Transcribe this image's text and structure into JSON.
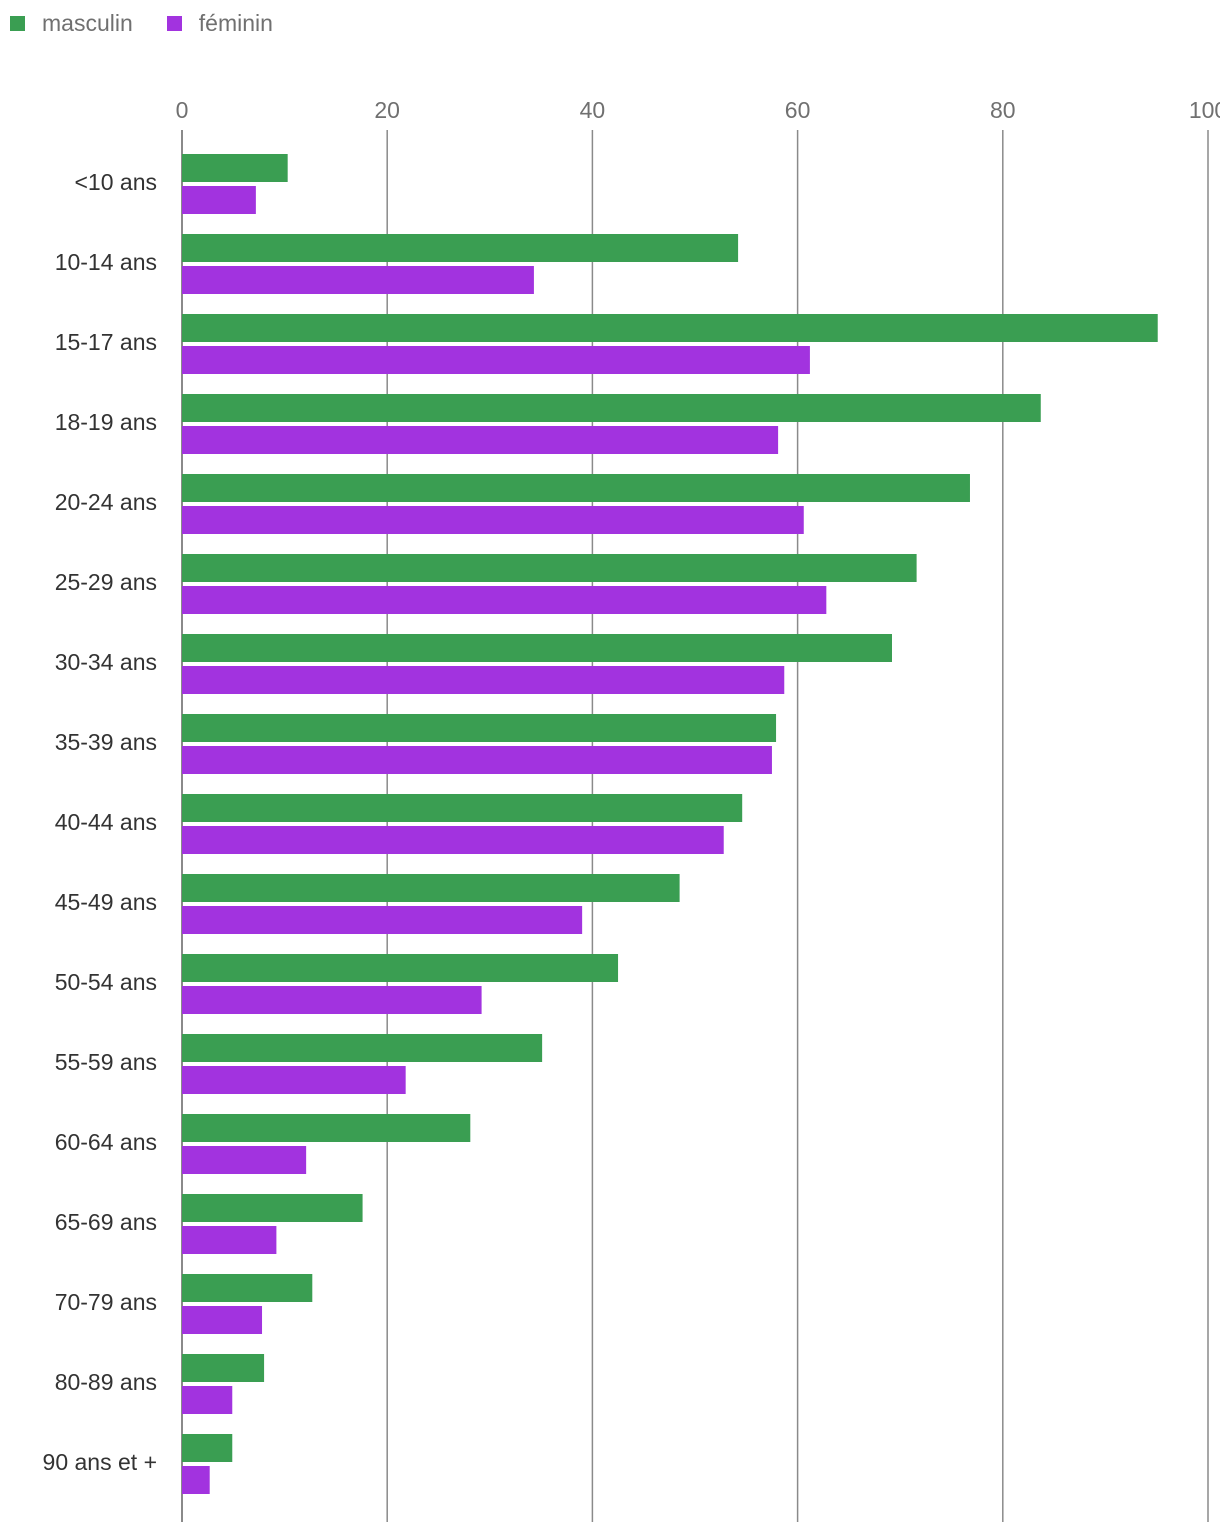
{
  "chart_data": {
    "type": "bar",
    "orientation": "horizontal",
    "title": "",
    "xlabel": "",
    "ylabel": "",
    "xlim": [
      0,
      100
    ],
    "ticks": [
      "0",
      "20",
      "40",
      "60",
      "80",
      "100"
    ],
    "tick_values": [
      0,
      20,
      40,
      60,
      80,
      100
    ],
    "grid": true,
    "legend_position": "top-left",
    "categories": [
      "<10 ans",
      "10-14 ans",
      "15-17 ans",
      "18-19 ans",
      "20-24 ans",
      "25-29 ans",
      "30-34 ans",
      "35-39 ans",
      "40-44 ans",
      "45-49 ans",
      "50-54 ans",
      "55-59 ans",
      "60-64 ans",
      "65-69 ans",
      "70-79 ans",
      "80-89 ans",
      "90 ans et +"
    ],
    "series": [
      {
        "name": "masculin",
        "color": "#3a9e52",
        "values": [
          10.3,
          54.2,
          95.1,
          83.7,
          76.8,
          71.6,
          69.2,
          57.9,
          54.6,
          48.5,
          42.5,
          35.1,
          28.1,
          17.6,
          12.7,
          8.0,
          4.9
        ]
      },
      {
        "name": "féminin",
        "color": "#a233df",
        "values": [
          7.2,
          34.3,
          61.2,
          58.1,
          60.6,
          62.8,
          58.7,
          57.5,
          52.8,
          39.0,
          29.2,
          21.8,
          12.1,
          9.2,
          7.8,
          4.9,
          2.7
        ]
      }
    ]
  }
}
